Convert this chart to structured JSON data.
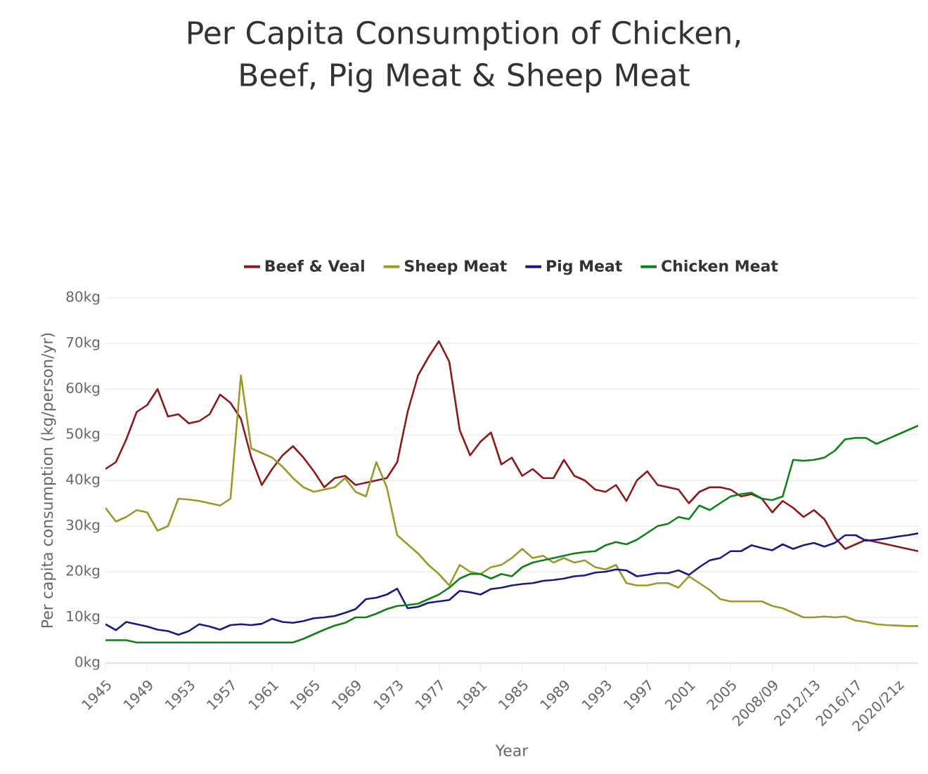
{
  "chart_data": {
    "type": "line",
    "title": "Per Capita Consumption of Chicken, Beef, Pig Meat & Sheep Meat",
    "xlabel": "Year",
    "ylabel": "Per capita consumption (kg/person/yr)",
    "categories": [
      "1945",
      null,
      null,
      null,
      "1949",
      null,
      null,
      null,
      "1953",
      null,
      null,
      null,
      "1957",
      null,
      null,
      null,
      "1961",
      null,
      null,
      null,
      "1965",
      null,
      null,
      null,
      "1969",
      null,
      null,
      null,
      "1973",
      null,
      null,
      null,
      "1977",
      null,
      null,
      null,
      "1981",
      null,
      null,
      null,
      "1985",
      null,
      null,
      null,
      "1989",
      null,
      null,
      null,
      "1993",
      null,
      null,
      null,
      "1997",
      null,
      null,
      null,
      "2001",
      null,
      null,
      null,
      "2005",
      null,
      null,
      null,
      "2008/09",
      null,
      null,
      null,
      "2012/13",
      null,
      null,
      null,
      "2016/17",
      null,
      null,
      null,
      "2020/21z",
      null,
      null
    ],
    "series": [
      {
        "name": "Beef & Veal",
        "color": "#8b1a1a",
        "values": [
          42.5,
          44,
          49,
          55,
          56.5,
          60,
          54,
          54.5,
          52.5,
          53,
          54.5,
          58.8,
          57,
          53.5,
          45,
          39,
          42.5,
          45.5,
          47.5,
          45,
          42,
          38.5,
          40.5,
          41,
          39,
          39.5,
          40,
          40.5,
          44,
          55,
          63,
          67,
          70.5,
          66,
          51,
          45.5,
          48.5,
          50.5,
          43.5,
          45,
          41,
          42.5,
          40.5,
          40.5,
          44.5,
          41,
          40,
          38,
          37.5,
          39,
          35.5,
          40,
          42,
          39,
          38.5,
          38,
          35,
          37.5,
          38.5,
          38.5,
          38,
          36.5,
          37,
          36,
          33,
          35.5,
          34,
          32,
          33.5,
          31.5,
          27.5,
          25,
          26,
          27,
          26.5,
          26,
          25.5,
          25,
          24.5
        ]
      },
      {
        "name": "Sheep Meat",
        "color": "#9a9a2a",
        "values": [
          34,
          31,
          32,
          33.5,
          33,
          29,
          30,
          36,
          35.8,
          35.5,
          35,
          34.5,
          36,
          63,
          47,
          46,
          45,
          43,
          40.5,
          38.5,
          37.5,
          38,
          38.5,
          40.5,
          37.5,
          36.5,
          44,
          38.5,
          28,
          26,
          24,
          21.5,
          19.5,
          17,
          21.5,
          20,
          19.5,
          21,
          21.5,
          23,
          25,
          23,
          23.5,
          22,
          23,
          22,
          22.5,
          21,
          20.5,
          21.5,
          17.5,
          17,
          17,
          17.5,
          17.5,
          16.5,
          19,
          17.5,
          16,
          14,
          13.5,
          13.5,
          13.5,
          13.5,
          12.5,
          12,
          11,
          10,
          10,
          10.2,
          10,
          10.2,
          9.3,
          9,
          8.5,
          8.3,
          8.2,
          8.1,
          8.1
        ]
      },
      {
        "name": "Pig Meat",
        "color": "#1a1a80",
        "values": [
          8.5,
          7.2,
          9,
          8.5,
          8,
          7.3,
          7,
          6.2,
          7,
          8.5,
          8,
          7.3,
          8.3,
          8.5,
          8.3,
          8.6,
          9.7,
          9,
          8.8,
          9.2,
          9.8,
          10,
          10.3,
          11,
          11.8,
          14,
          14.3,
          15,
          16.3,
          12,
          12.3,
          13.2,
          13.5,
          13.8,
          15.8,
          15.5,
          15,
          16.2,
          16.5,
          17,
          17.3,
          17.5,
          18,
          18.2,
          18.5,
          19,
          19.2,
          19.8,
          20,
          20.5,
          20.3,
          19,
          19.3,
          19.7,
          19.7,
          20.3,
          19.3,
          21,
          22.5,
          23,
          24.5,
          24.5,
          25.8,
          25.2,
          24.7,
          26,
          25,
          25.8,
          26.3,
          25.5,
          26.3,
          28,
          28,
          26.8,
          27,
          27.3,
          27.7,
          28,
          28.4
        ]
      },
      {
        "name": "Chicken Meat",
        "color": "#10801a",
        "values": [
          5,
          5,
          5,
          4.5,
          4.5,
          4.5,
          4.5,
          4.5,
          4.5,
          4.5,
          4.5,
          4.5,
          4.5,
          4.5,
          4.5,
          4.5,
          4.5,
          4.5,
          4.5,
          5.3,
          6.3,
          7.3,
          8.2,
          8.8,
          10,
          10,
          10.8,
          11.8,
          12.5,
          12.7,
          13,
          14,
          15,
          16.5,
          18.5,
          19.5,
          19.5,
          18.5,
          19.5,
          19,
          21,
          22,
          22.5,
          23,
          23.5,
          24,
          24.3,
          24.5,
          25.8,
          26.5,
          26,
          27,
          28.5,
          30,
          30.5,
          32,
          31.5,
          34.5,
          33.5,
          35,
          36.5,
          37,
          37.3,
          36,
          35.7,
          36.5,
          44.5,
          44.3,
          44.5,
          45,
          46.5,
          49,
          49.3,
          49.3,
          48,
          49,
          50,
          51,
          52
        ]
      }
    ],
    "ylim": [
      0,
      80
    ],
    "yticks": [
      {
        "value": 0,
        "label": "0kg"
      },
      {
        "value": 10,
        "label": "10kg"
      },
      {
        "value": 20,
        "label": "20kg"
      },
      {
        "value": 30,
        "label": "30kg"
      },
      {
        "value": 40,
        "label": "40kg"
      },
      {
        "value": 50,
        "label": "50kg"
      },
      {
        "value": 60,
        "label": "60kg"
      },
      {
        "value": 70,
        "label": "70kg"
      },
      {
        "value": 80,
        "label": "80kg"
      }
    ],
    "grid": "y",
    "legend": "top",
    "marker": "none",
    "line_style": "solid"
  }
}
